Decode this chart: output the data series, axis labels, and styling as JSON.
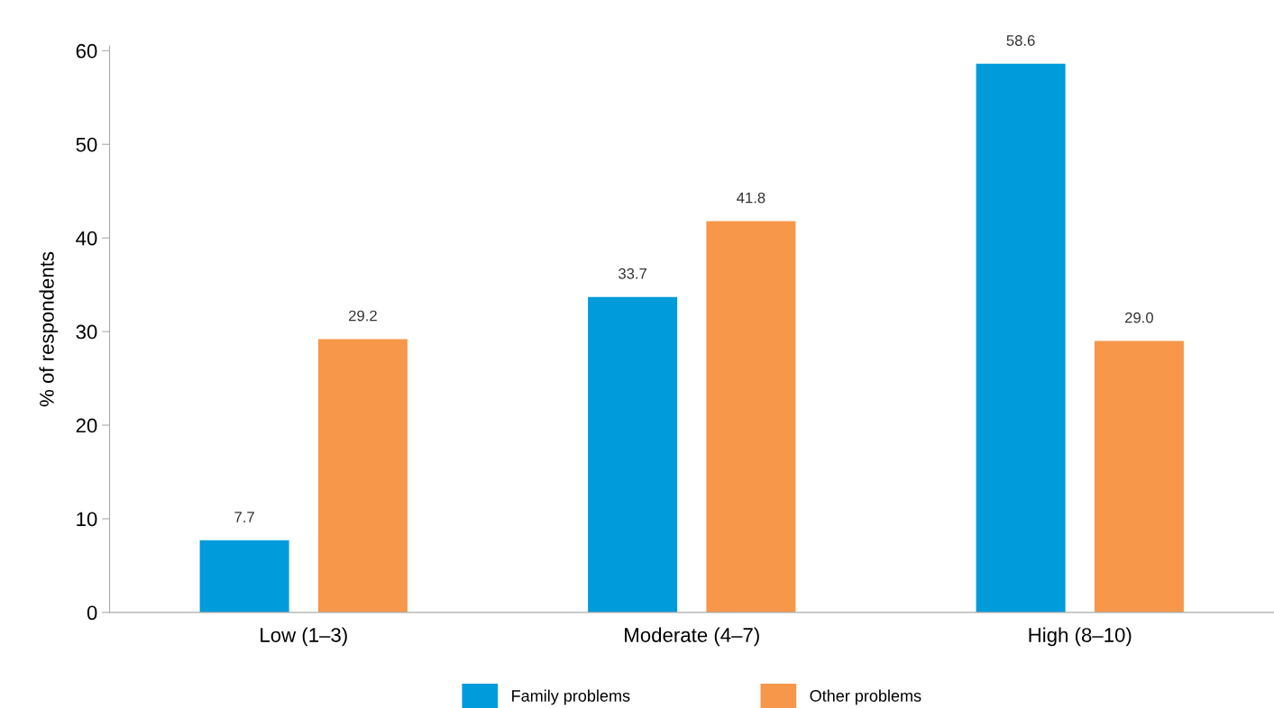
{
  "chart_data": {
    "type": "bar",
    "ylabel": "% of respondents",
    "categories": [
      "Low (1–3)",
      "Moderate (4–7)",
      "High (8–10)"
    ],
    "series": [
      {
        "name": "Family problems",
        "color": "#009bdb",
        "values": [
          7.7,
          33.7,
          58.6
        ],
        "value_labels": [
          "7.7",
          "33.7",
          "58.6"
        ]
      },
      {
        "name": "Other problems",
        "color": "#f6974a",
        "values": [
          29.2,
          41.8,
          29.0
        ],
        "value_labels": [
          "29.2",
          "41.8",
          "29.0"
        ]
      }
    ],
    "ylim": [
      0,
      60.5
    ],
    "yticks": [
      0,
      10,
      20,
      30,
      40,
      50,
      60
    ],
    "grid": false,
    "legend": "bottom"
  }
}
